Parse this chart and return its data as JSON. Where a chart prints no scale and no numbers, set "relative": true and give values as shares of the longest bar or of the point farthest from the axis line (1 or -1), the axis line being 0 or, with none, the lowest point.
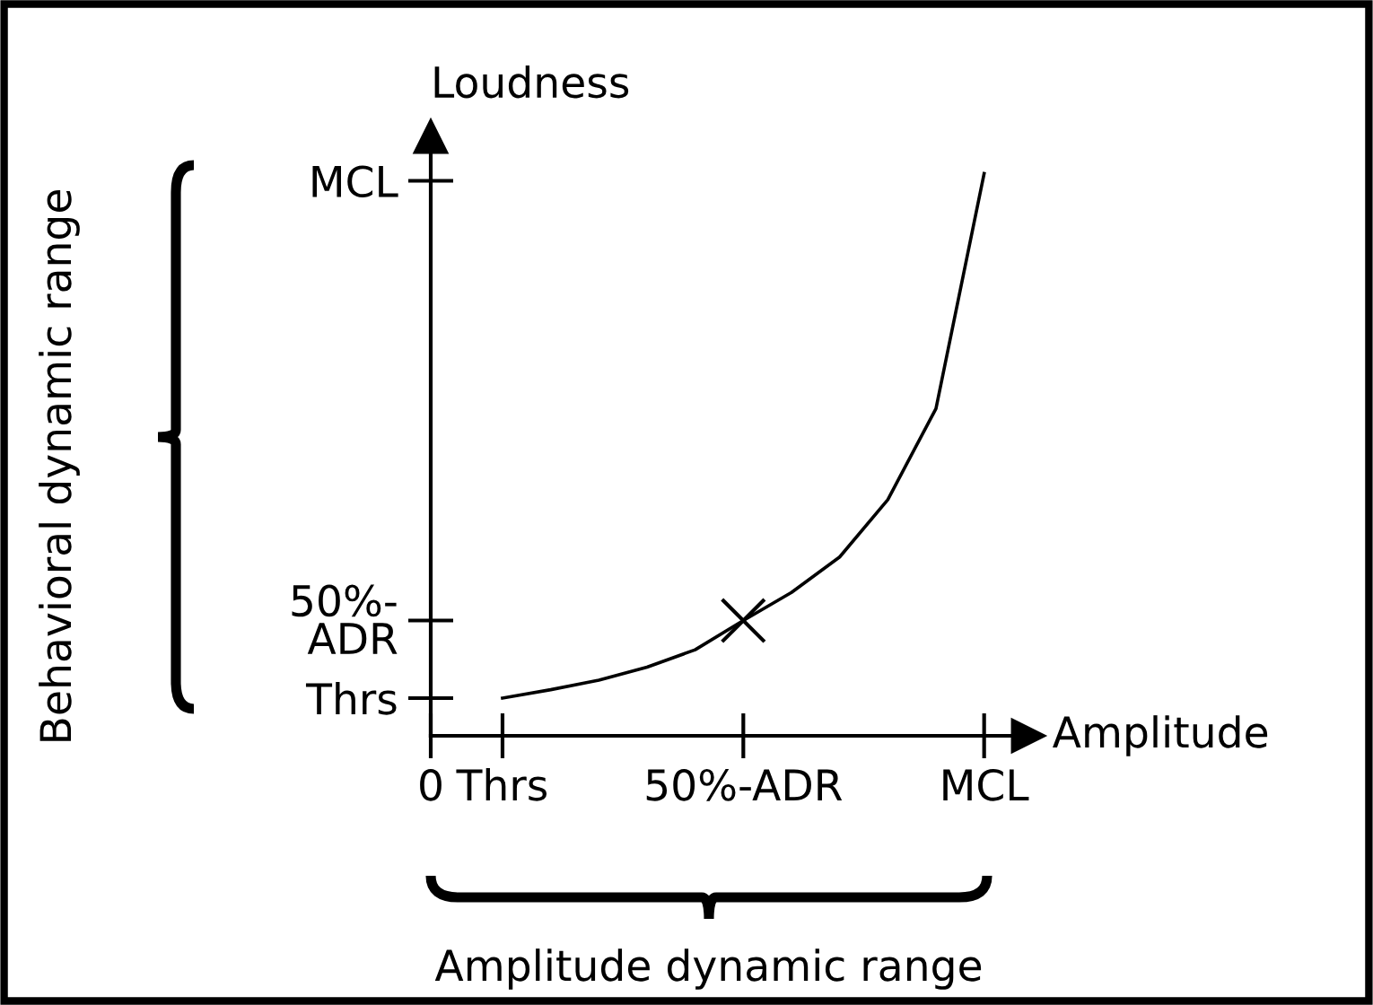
{
  "chart_data": {
    "type": "line",
    "relative": true,
    "xlabel": "Amplitude",
    "ylabel": "Loudness",
    "annotations": [
      "Behavioral dynamic range",
      "Amplitude dynamic range",
      "0",
      "Thrs",
      "50%-ADR",
      "MCL",
      "Thrs",
      "50%-\nADR",
      "MCL"
    ],
    "categories": [
      null,
      null,
      null,
      null,
      null,
      null,
      null,
      null,
      null,
      null,
      null
    ],
    "series": [
      {
        "color": "#000000",
        "values": [
          0.067,
          0.082,
          0.099,
          0.122,
          0.153,
          0.205,
          0.255,
          0.318,
          0.42,
          0.582,
          1
        ]
      }
    ],
    "grid": false
  }
}
